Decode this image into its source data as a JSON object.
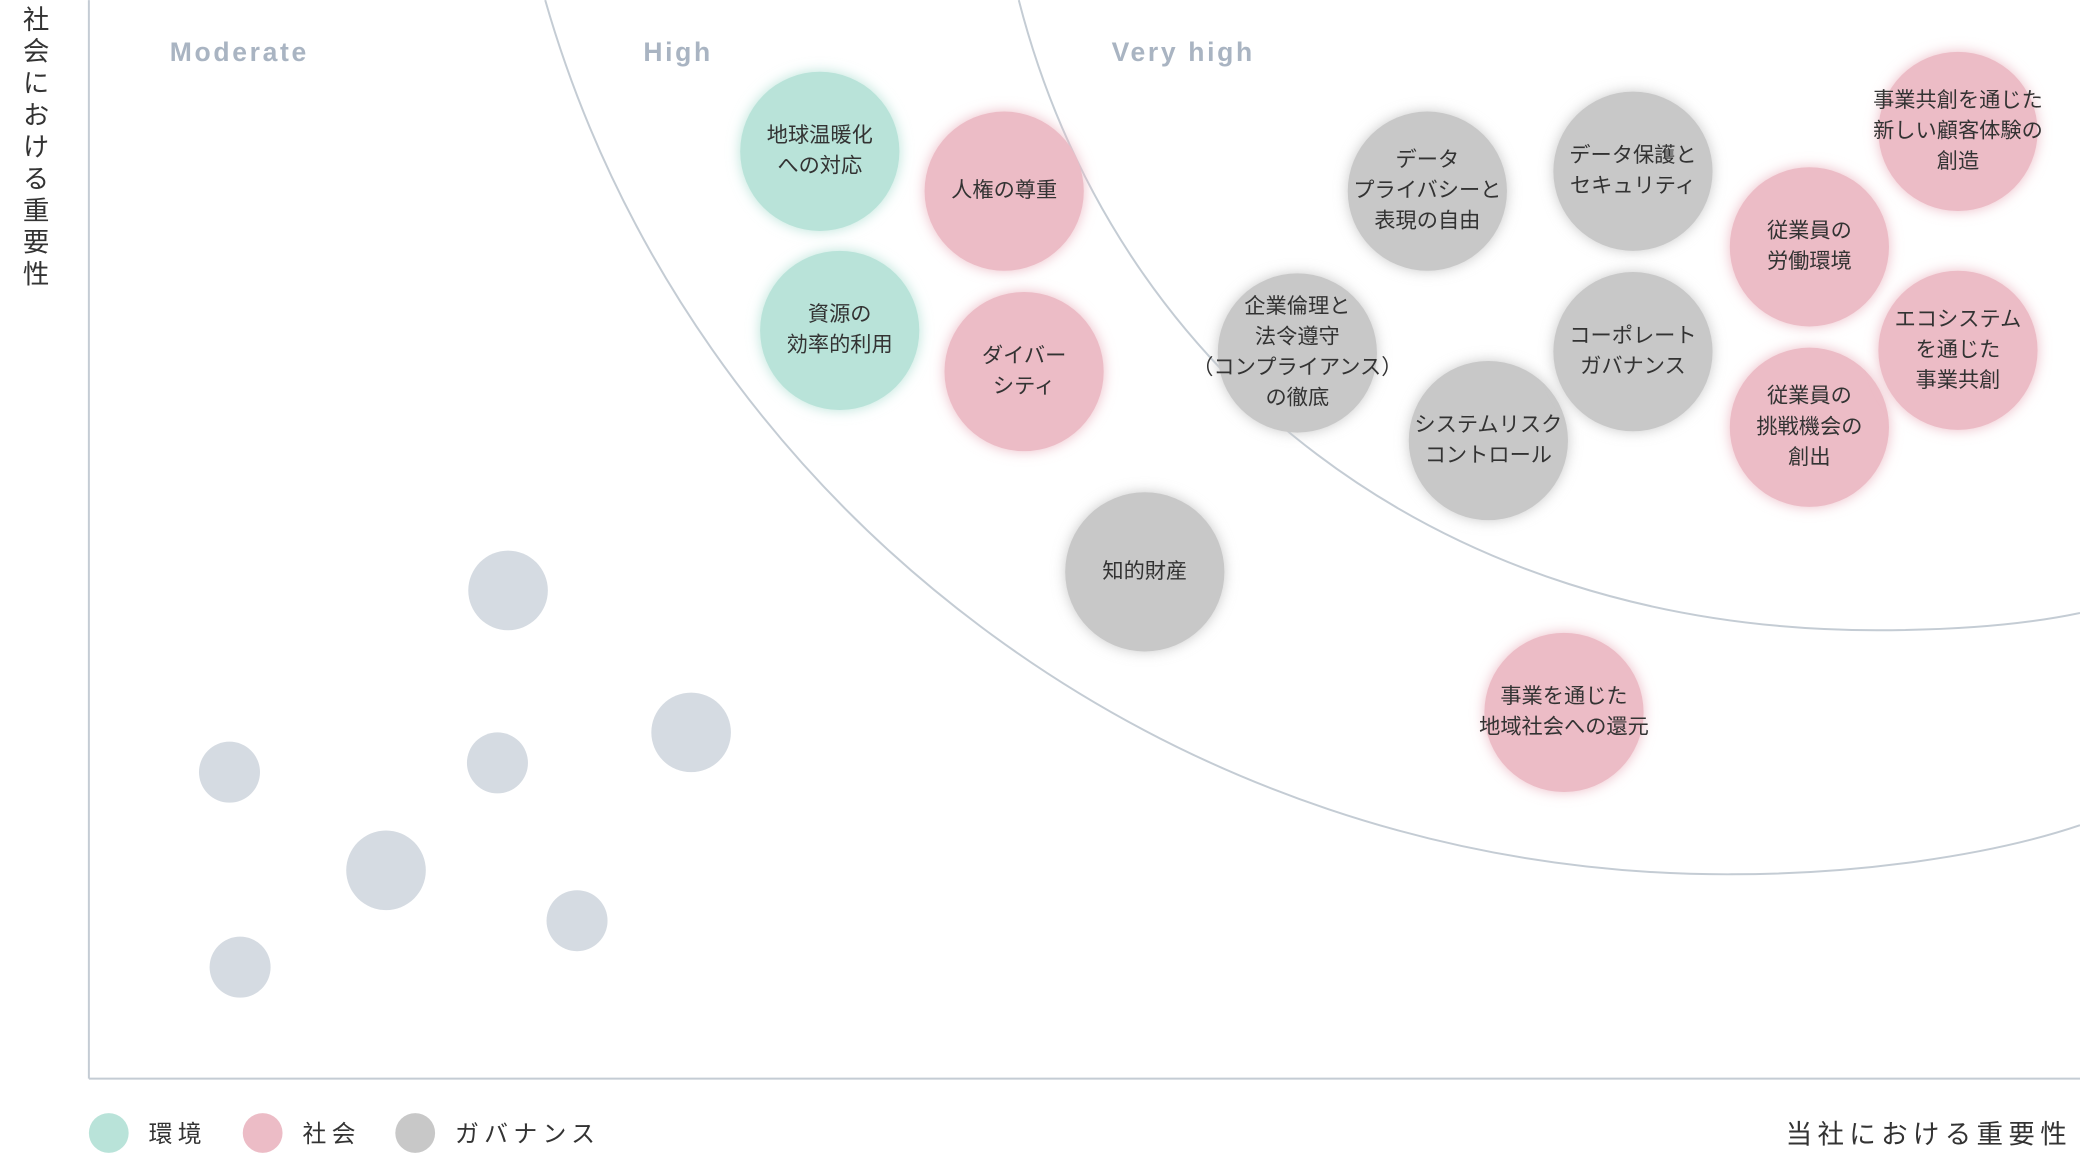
{
  "y_axis_label": "社会における重要性",
  "x_axis_label": "当社における重要性",
  "zones": [
    "Moderate",
    "High",
    "Very high"
  ],
  "legend": [
    {
      "name": "環境",
      "color": "#b9e3d9"
    },
    {
      "name": "社会",
      "color": "#ecbcc6"
    },
    {
      "name": "ガバナンス",
      "color": "#c8c8c8"
    }
  ],
  "items": [
    {
      "lines": [
        "地球温暖化",
        "への対応"
      ],
      "category": 0
    },
    {
      "lines": [
        "資源の",
        "効率的利用"
      ],
      "category": 0
    },
    {
      "lines": [
        "人権の尊重"
      ],
      "category": 1
    },
    {
      "lines": [
        "ダイバー",
        "シティ"
      ],
      "category": 1
    },
    {
      "lines": [
        "知的財産"
      ],
      "category": 2
    },
    {
      "lines": [
        "企業倫理と",
        "法令遵守",
        "（コンプライアンス）",
        "の徹底"
      ],
      "category": 2
    },
    {
      "lines": [
        "データ",
        "プライバシーと",
        "表現の自由"
      ],
      "category": 2
    },
    {
      "lines": [
        "システムリスク",
        "コントロール"
      ],
      "category": 2
    },
    {
      "lines": [
        "データ保護と",
        "セキュリティ"
      ],
      "category": 2
    },
    {
      "lines": [
        "コーポレート",
        "ガバナンス"
      ],
      "category": 2
    },
    {
      "lines": [
        "事業を通じた",
        "地域社会への還元"
      ],
      "category": 1
    },
    {
      "lines": [
        "従業員の",
        "労働環境"
      ],
      "category": 1
    },
    {
      "lines": [
        "従業員の",
        "挑戦機会の",
        "創出"
      ],
      "category": 1
    },
    {
      "lines": [
        "事業共創を通じた",
        "新しい顧客体験の",
        "創造"
      ],
      "category": 1
    },
    {
      "lines": [
        "エコシステム",
        "を通じた",
        "事業共創"
      ],
      "category": 1
    }
  ]
}
